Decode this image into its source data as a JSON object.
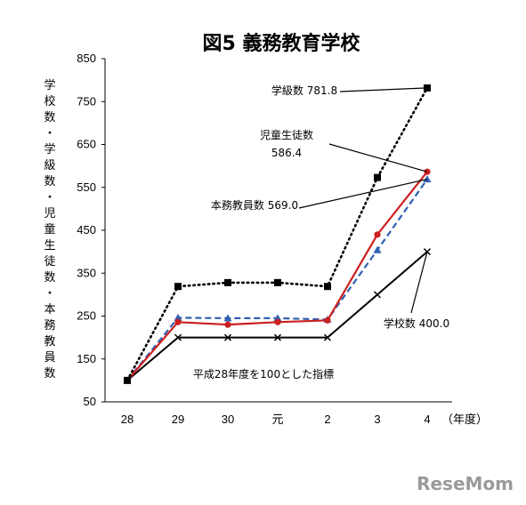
{
  "chart_data": {
    "type": "line",
    "title": "図5 義務教育学校",
    "ylabel": "学校数・学級数・児童生徒数・本務教員数",
    "xunit": "（年度）",
    "note": "平成28年度を100とした指標",
    "categories": [
      "28",
      "29",
      "30",
      "元",
      "2",
      "3",
      "4"
    ],
    "ylim": [
      50,
      850
    ],
    "yticks": [
      50,
      150,
      250,
      350,
      450,
      550,
      650,
      750,
      850
    ],
    "series": [
      {
        "name": "学級数",
        "values": [
          100,
          319,
          328,
          328,
          319,
          573,
          781.8
        ],
        "color": "#000000",
        "dash": "dotted",
        "marker": "square",
        "label_value": "781.8"
      },
      {
        "name": "児童生徒数",
        "values": [
          100,
          236,
          230,
          236,
          240,
          440,
          586.4
        ],
        "color": "#cc1f1f",
        "dash": "solid",
        "marker": "circle",
        "label_value": "586.4"
      },
      {
        "name": "本務教員数",
        "values": [
          100,
          246,
          245,
          245,
          242,
          404,
          569.0
        ],
        "color": "#3060b0",
        "dash": "dashed",
        "marker": "triangle",
        "label_value": "569.0"
      },
      {
        "name": "学校数",
        "values": [
          100,
          200,
          200,
          200,
          200,
          300,
          400.0
        ],
        "color": "#000000",
        "dash": "solid",
        "marker": "x",
        "label_value": "400.0"
      }
    ],
    "annotations": [
      {
        "series": 0,
        "text": "学級数",
        "value_text": "781.8"
      },
      {
        "series": 1,
        "text": "児童生徒数",
        "value_text": "586.4"
      },
      {
        "series": 2,
        "text": "本務教員数",
        "value_text": "569.0"
      },
      {
        "series": 3,
        "text": "学校数",
        "value_text": "400.0"
      }
    ]
  },
  "watermark": "ReseMom"
}
